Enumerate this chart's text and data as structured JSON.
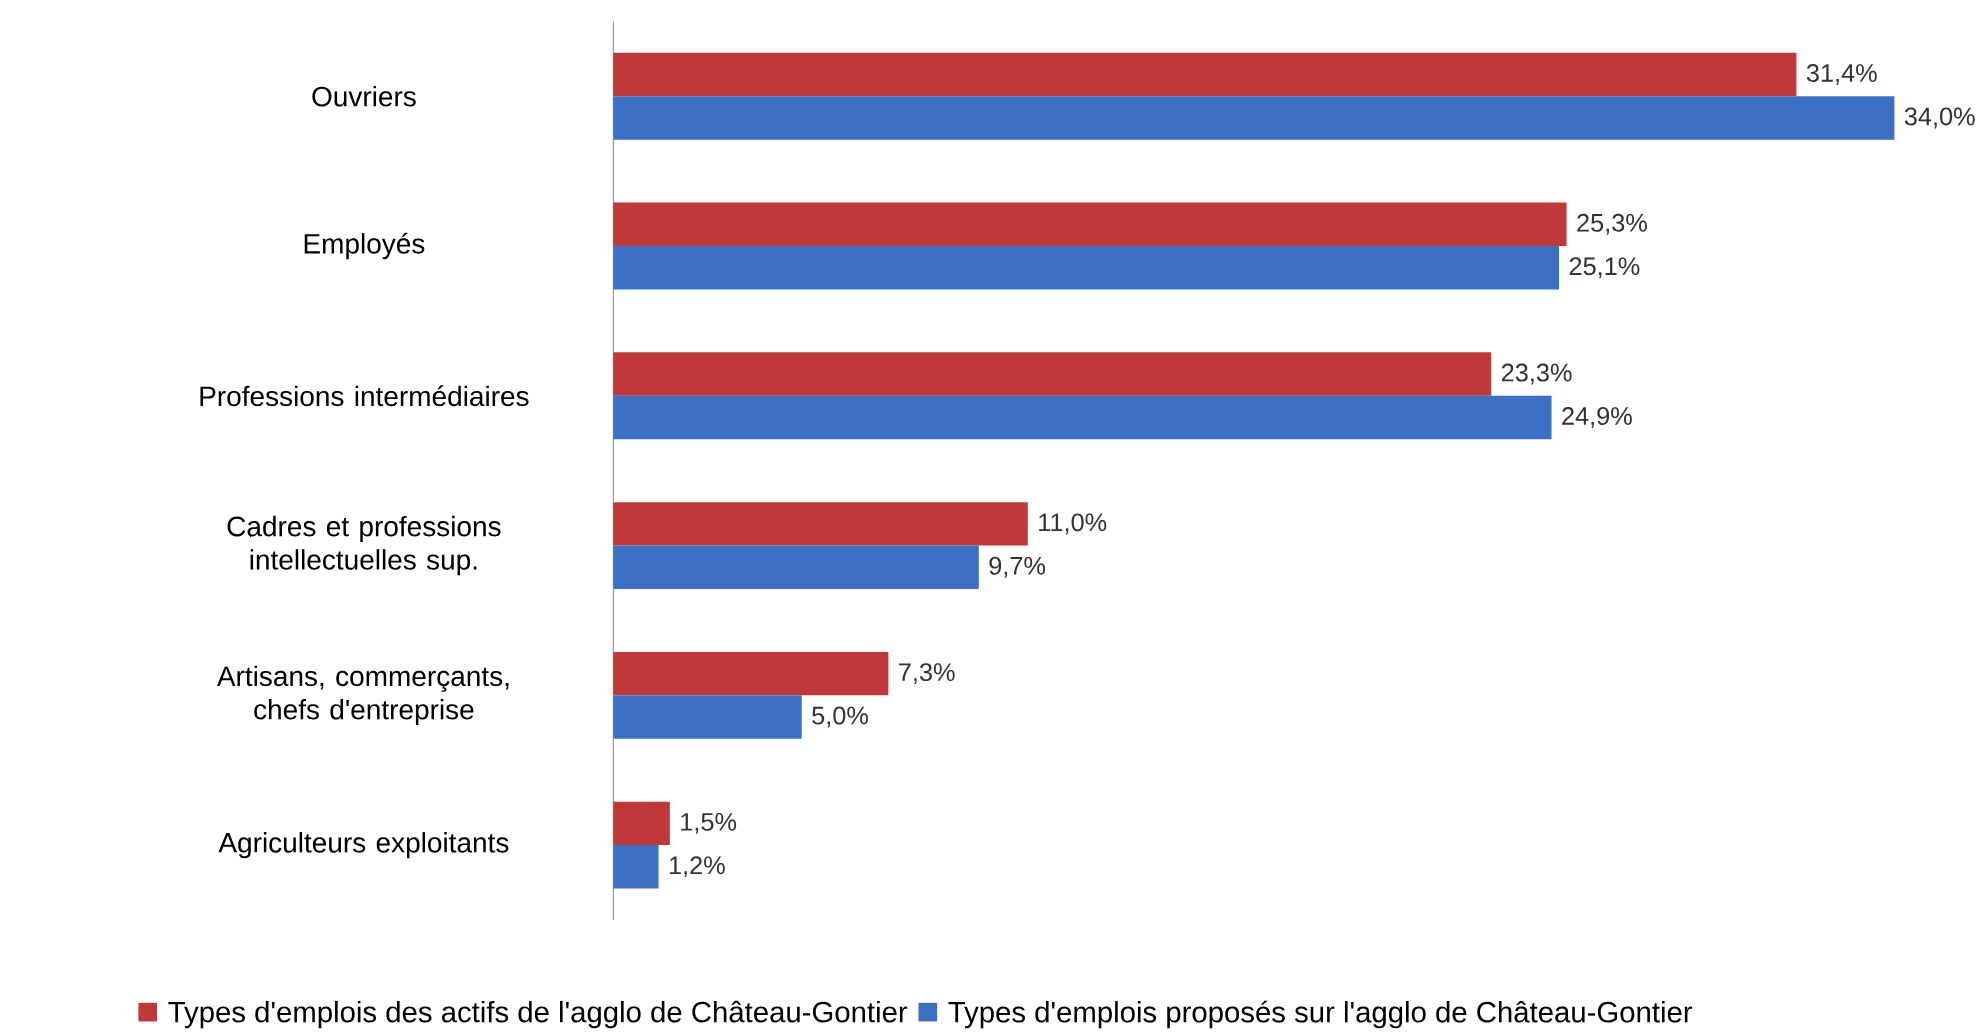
{
  "chart_data": {
    "type": "bar",
    "orientation": "horizontal",
    "categories": [
      "Ouvriers",
      "Employés",
      "Professions intermédiaires",
      "Cadres et professions intellectuelles sup.",
      "Artisans, commerçants, chefs d'entreprise",
      "Agriculteurs exploitants"
    ],
    "series": [
      {
        "name": "Types d'emplois des actifs de l'agglo de Château-Gontier",
        "color": "#c0383a",
        "values": [
          31.4,
          25.3,
          23.3,
          11.0,
          7.3,
          1.5
        ],
        "value_labels": [
          "31,4%",
          "25,3%",
          "23,3%",
          "11,0%",
          "7,3%",
          "1,5%"
        ]
      },
      {
        "name": "Types d'emplois proposés sur l'agglo de Château-Gontier",
        "color": "#3b70c4",
        "values": [
          34.0,
          25.1,
          24.9,
          9.7,
          5.0,
          1.2
        ],
        "value_labels": [
          "34,0%",
          "25,1%",
          "24,9%",
          "9,7%",
          "5,0%",
          "1,2%"
        ]
      }
    ],
    "legend": "bottom"
  }
}
